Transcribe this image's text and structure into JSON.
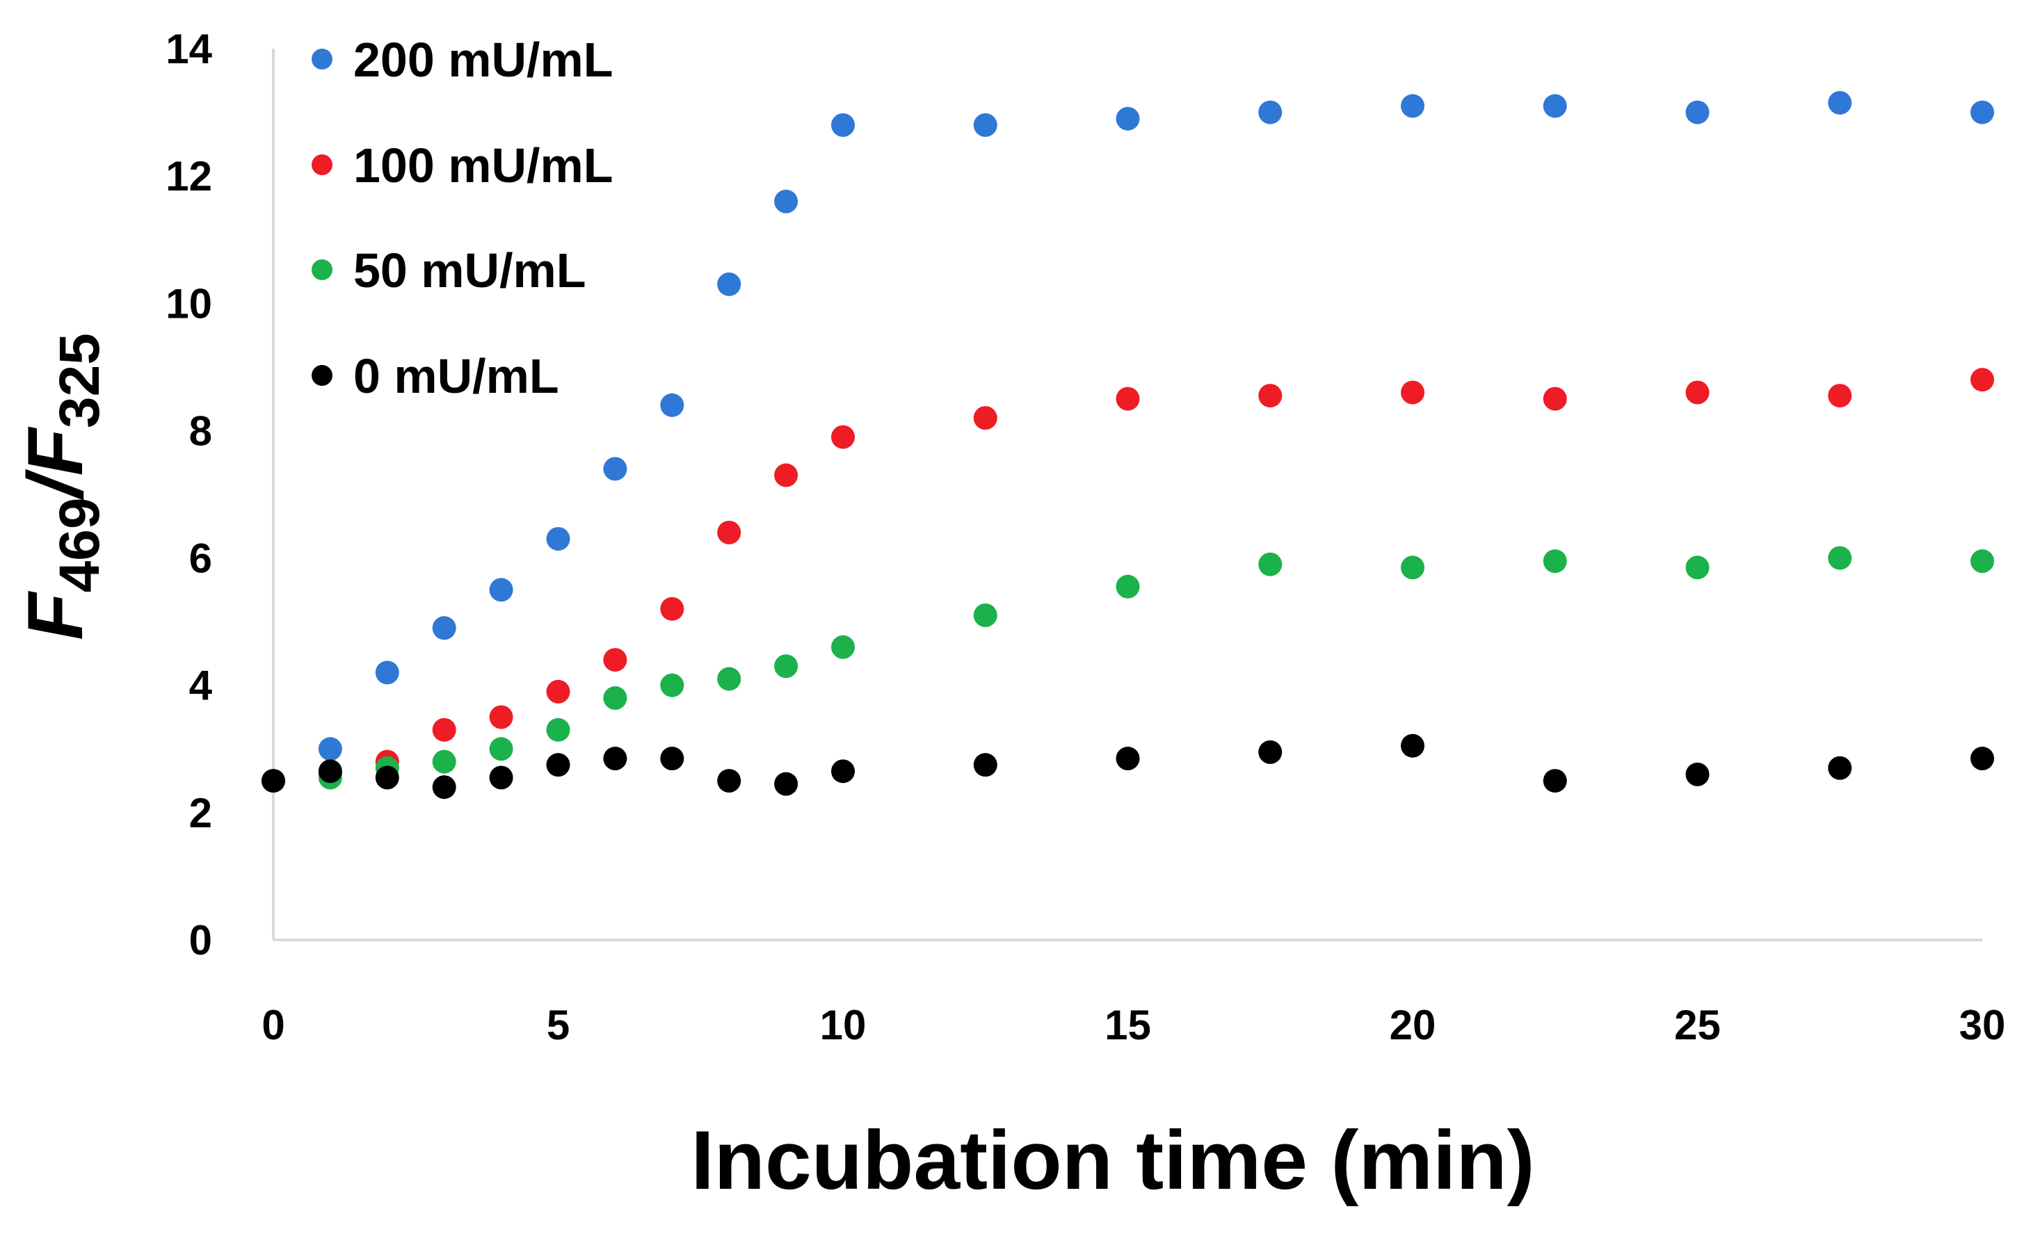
{
  "chart_data": {
    "type": "scatter",
    "title": "",
    "xlabel": "Incubation time (min)",
    "ylabel": {
      "main1": "F",
      "sub1": "469",
      "sep": "/",
      "main2": "F",
      "sub2": "325"
    },
    "xlim": [
      0,
      30
    ],
    "ylim": [
      0,
      14
    ],
    "xticks": [
      0,
      5,
      10,
      15,
      20,
      25,
      30
    ],
    "yticks": [
      0,
      2,
      4,
      6,
      8,
      10,
      12,
      14
    ],
    "grid": false,
    "legend_position": "top-left",
    "series": [
      {
        "name": "200 mU/mL",
        "color": "#2f78d6",
        "points": [
          [
            0,
            2.5
          ],
          [
            1,
            3.0
          ],
          [
            2,
            4.2
          ],
          [
            3,
            4.9
          ],
          [
            4,
            5.5
          ],
          [
            5,
            6.3
          ],
          [
            6,
            7.4
          ],
          [
            7,
            8.4
          ],
          [
            8,
            10.3
          ],
          [
            9,
            11.6
          ],
          [
            10,
            12.8
          ],
          [
            12.5,
            12.8
          ],
          [
            15,
            12.9
          ],
          [
            17.5,
            13.0
          ],
          [
            20,
            13.1
          ],
          [
            22.5,
            13.1
          ],
          [
            25,
            13.0
          ],
          [
            27.5,
            13.15
          ],
          [
            30,
            13.0
          ]
        ]
      },
      {
        "name": "100 mU/mL",
        "color": "#ee1c24",
        "points": [
          [
            0,
            2.5
          ],
          [
            1,
            2.6
          ],
          [
            2,
            2.8
          ],
          [
            3,
            3.3
          ],
          [
            4,
            3.5
          ],
          [
            5,
            3.9
          ],
          [
            6,
            4.4
          ],
          [
            7,
            5.2
          ],
          [
            8,
            6.4
          ],
          [
            9,
            7.3
          ],
          [
            10,
            7.9
          ],
          [
            12.5,
            8.2
          ],
          [
            15,
            8.5
          ],
          [
            17.5,
            8.55
          ],
          [
            20,
            8.6
          ],
          [
            22.5,
            8.5
          ],
          [
            25,
            8.6
          ],
          [
            27.5,
            8.55
          ],
          [
            30,
            8.8
          ]
        ]
      },
      {
        "name": "50 mU/mL",
        "color": "#1bb24b",
        "points": [
          [
            0,
            2.5
          ],
          [
            1,
            2.55
          ],
          [
            2,
            2.7
          ],
          [
            3,
            2.8
          ],
          [
            4,
            3.0
          ],
          [
            5,
            3.3
          ],
          [
            6,
            3.8
          ],
          [
            7,
            4.0
          ],
          [
            8,
            4.1
          ],
          [
            9,
            4.3
          ],
          [
            10,
            4.6
          ],
          [
            12.5,
            5.1
          ],
          [
            15,
            5.55
          ],
          [
            17.5,
            5.9
          ],
          [
            20,
            5.85
          ],
          [
            22.5,
            5.95
          ],
          [
            25,
            5.85
          ],
          [
            27.5,
            6.0
          ],
          [
            30,
            5.95
          ]
        ]
      },
      {
        "name": "0 mU/mL",
        "color": "#000000",
        "points": [
          [
            0,
            2.5
          ],
          [
            1,
            2.65
          ],
          [
            2,
            2.55
          ],
          [
            3,
            2.4
          ],
          [
            4,
            2.55
          ],
          [
            5,
            2.75
          ],
          [
            6,
            2.85
          ],
          [
            7,
            2.85
          ],
          [
            8,
            2.5
          ],
          [
            9,
            2.45
          ],
          [
            10,
            2.65
          ],
          [
            12.5,
            2.75
          ],
          [
            15,
            2.85
          ],
          [
            17.5,
            2.95
          ],
          [
            20,
            3.05
          ],
          [
            22.5,
            2.5
          ],
          [
            25,
            2.6
          ],
          [
            27.5,
            2.7
          ],
          [
            30,
            2.85
          ]
        ]
      }
    ]
  }
}
